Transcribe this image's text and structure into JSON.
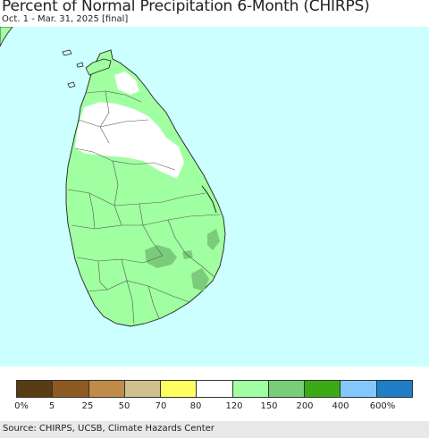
{
  "title": "Percent of Normal Precipitation 6-Month (CHIRPS)",
  "subtitle": "Oct. 1 - Mar. 31, 2025 [final]",
  "map": {
    "ocean_color": "#ccffff",
    "boundary_color": "#555555",
    "coast_color": "#222222"
  },
  "legend": {
    "colors": [
      "#5a3c14",
      "#8f5a22",
      "#c08c48",
      "#d0c08c",
      "#ffff64",
      "#ffffff",
      "#a0ffa0",
      "#7acb7a",
      "#3aab14",
      "#82c8ff",
      "#1e7ec8"
    ],
    "tick_labels": [
      "0%",
      "5",
      "25",
      "50",
      "70",
      "80",
      "120",
      "150",
      "200",
      "400",
      "600%"
    ]
  },
  "source": "Source: CHIRPS, UCSB, Climate Hazards Center"
}
